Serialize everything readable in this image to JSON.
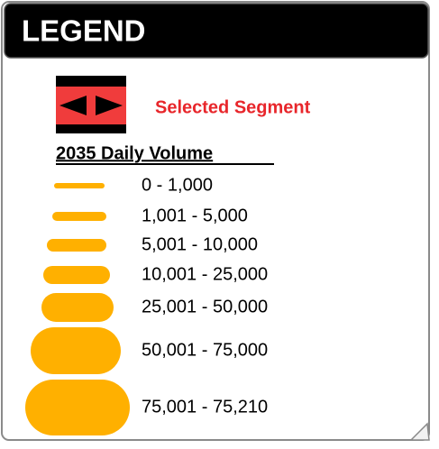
{
  "header": {
    "title": "LEGEND"
  },
  "selected": {
    "label": "Selected Segment"
  },
  "section": {
    "title": "2035 Daily Volume"
  },
  "legend": {
    "items": [
      {
        "label": "0 - 1,000"
      },
      {
        "label": "1,001 - 5,000"
      },
      {
        "label": "5,001 - 10,000"
      },
      {
        "label": "10,001 - 25,000"
      },
      {
        "label": "25,001 - 50,000"
      },
      {
        "label": "50,001 - 75,000"
      },
      {
        "label": "75,001 - 75,210"
      }
    ]
  }
}
